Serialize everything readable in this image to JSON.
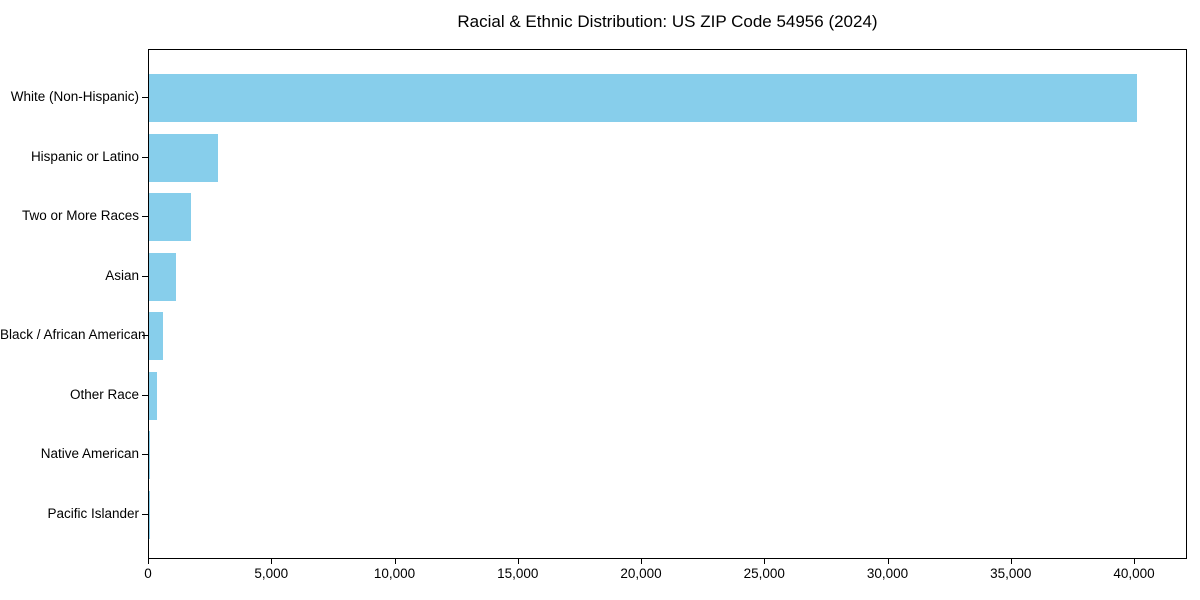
{
  "chart_data": {
    "type": "bar",
    "orientation": "horizontal",
    "title": "Racial & Ethnic Distribution: US ZIP Code 54956 (2024)",
    "categories": [
      "White (Non-Hispanic)",
      "Hispanic or Latino",
      "Two or More Races",
      "Asian",
      "Black / African American",
      "Other Race",
      "Native American",
      "Pacific Islander"
    ],
    "values": [
      40100,
      2800,
      1700,
      1100,
      580,
      310,
      60,
      15
    ],
    "xlabel": "",
    "ylabel": "",
    "xlim": [
      0,
      42150
    ],
    "x_ticks": [
      0,
      5000,
      10000,
      15000,
      20000,
      25000,
      30000,
      35000,
      40000
    ],
    "x_tick_labels": [
      "0",
      "5,000",
      "10,000",
      "15,000",
      "20,000",
      "25,000",
      "30,000",
      "35,000",
      "40,000"
    ],
    "bar_color": "#87CEEB",
    "grid": false,
    "legend_position": "none",
    "background_color": "#ffffff",
    "spine_color": "#000000"
  }
}
